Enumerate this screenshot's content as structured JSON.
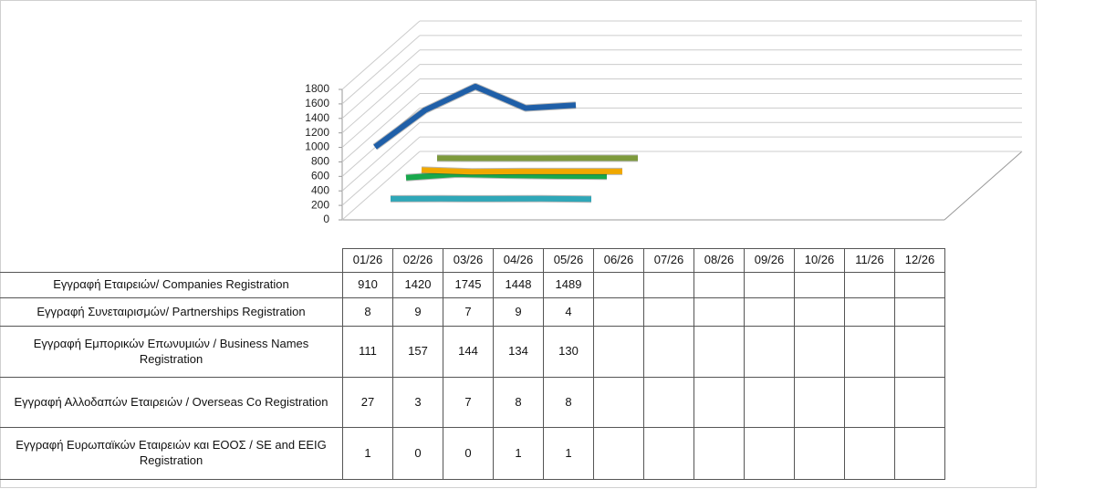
{
  "chart_data": {
    "type": "line",
    "view": "3d",
    "categories": [
      "01/26",
      "02/26",
      "03/26",
      "04/26",
      "05/26",
      "06/26",
      "07/26",
      "08/26",
      "09/26",
      "10/26",
      "11/26",
      "12/26"
    ],
    "series": [
      {
        "name": "Εγγραφή Εταιρειών/ Companies Registration",
        "color": "#1f5fa8",
        "values": [
          910,
          1420,
          1745,
          1448,
          1489,
          null,
          null,
          null,
          null,
          null,
          null,
          null
        ]
      },
      {
        "name": "Εγγραφή Συνεταιρισμών/ Partnerships Registration",
        "color": "#2fa7b8",
        "values": [
          8,
          9,
          7,
          9,
          4,
          null,
          null,
          null,
          null,
          null,
          null,
          null
        ]
      },
      {
        "name": "Εγγραφή Εμπορικών Επωνυμιών / Business Names Registration",
        "color": "#18a84c",
        "values": [
          111,
          157,
          144,
          134,
          130,
          null,
          null,
          null,
          null,
          null,
          null,
          null
        ]
      },
      {
        "name": "Εγγραφή Αλλοδαπών Εταιρειών / Overseas Co Registration",
        "color": "#f0a800",
        "values": [
          27,
          3,
          7,
          8,
          8,
          null,
          null,
          null,
          null,
          null,
          null,
          null
        ]
      },
      {
        "name": "Εγγραφή Ευρωπαϊκών Εταιρειών και ΕΟΟΣ / SE and EEIG Registration",
        "color": "#7d9a3c",
        "values": [
          1,
          0,
          0,
          1,
          1,
          null,
          null,
          null,
          null,
          null,
          null,
          null
        ]
      }
    ],
    "ylim": [
      0,
      1800
    ],
    "yticks": [
      0,
      200,
      400,
      600,
      800,
      1000,
      1200,
      1400,
      1600,
      1800
    ],
    "grid": true,
    "data_table": true
  }
}
